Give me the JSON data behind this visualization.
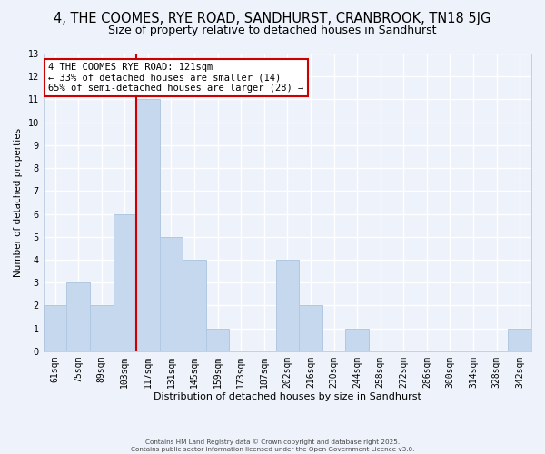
{
  "title": "4, THE COOMES, RYE ROAD, SANDHURST, CRANBROOK, TN18 5JG",
  "subtitle": "Size of property relative to detached houses in Sandhurst",
  "xlabel": "Distribution of detached houses by size in Sandhurst",
  "ylabel": "Number of detached properties",
  "bar_color": "#c5d8ed",
  "bar_edge_color": "#b0c8e0",
  "categories": [
    "61sqm",
    "75sqm",
    "89sqm",
    "103sqm",
    "117sqm",
    "131sqm",
    "145sqm",
    "159sqm",
    "173sqm",
    "187sqm",
    "202sqm",
    "216sqm",
    "230sqm",
    "244sqm",
    "258sqm",
    "272sqm",
    "286sqm",
    "300sqm",
    "314sqm",
    "328sqm",
    "342sqm"
  ],
  "values": [
    2,
    3,
    2,
    6,
    11,
    5,
    4,
    1,
    0,
    0,
    4,
    2,
    0,
    1,
    0,
    0,
    0,
    0,
    0,
    0,
    1
  ],
  "ylim": [
    0,
    13
  ],
  "yticks": [
    0,
    1,
    2,
    3,
    4,
    5,
    6,
    7,
    8,
    9,
    10,
    11,
    12,
    13
  ],
  "property_line_index": 4,
  "property_line_color": "#cc0000",
  "annotation_line1": "4 THE COOMES RYE ROAD: 121sqm",
  "annotation_line2": "← 33% of detached houses are smaller (14)",
  "annotation_line3": "65% of semi-detached houses are larger (28) →",
  "annotation_box_color": "#ffffff",
  "annotation_box_edge": "#cc0000",
  "footer_line1": "Contains HM Land Registry data © Crown copyright and database right 2025.",
  "footer_line2": "Contains public sector information licensed under the Open Government Licence v3.0.",
  "background_color": "#eef3fb",
  "grid_color": "#ffffff",
  "title_fontsize": 10.5,
  "subtitle_fontsize": 9
}
